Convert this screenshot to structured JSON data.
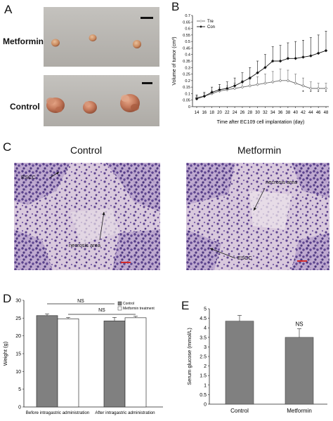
{
  "panels": {
    "A": {
      "letter": "A",
      "rows": [
        {
          "label": "Metformin",
          "tumor_sizes": [
            "small",
            "small",
            "small"
          ]
        },
        {
          "label": "Control",
          "tumor_sizes": [
            "large",
            "medium",
            "large"
          ]
        }
      ],
      "colors": {
        "photo_bg": "#b9b6b1",
        "tumor": "#c98a5f",
        "tumor_dark": "#a65e3d"
      }
    },
    "B": {
      "letter": "B"
    },
    "C": {
      "letter": "C",
      "titles": {
        "left": "Control",
        "right": "Metformin"
      },
      "left_labels": {
        "escc": "ESCC",
        "necrosis": "necrosis area"
      },
      "right_labels": {
        "escc": "ESCC",
        "necrosis": "necrosis area"
      },
      "colors": {
        "tissue_bg": "#d7c6db",
        "nuclei": "#5a3e86",
        "scalebar": "#d32a2a"
      }
    },
    "D": {
      "letter": "D",
      "ns_top": "NS",
      "ns_bottom": "NS"
    },
    "E": {
      "letter": "E",
      "ns": "NS"
    }
  },
  "chart_data": [
    {
      "id": "B",
      "type": "line",
      "xlabel": "Time after EC109 cell implantation (day)",
      "ylabel": "Volume of tumor (cm³)",
      "x": [
        14,
        16,
        18,
        20,
        22,
        24,
        26,
        28,
        30,
        32,
        34,
        36,
        38,
        40,
        42,
        44,
        46,
        48
      ],
      "xticks": [
        "14",
        "16",
        "18",
        "20",
        "22",
        "24",
        "26",
        "28",
        "30",
        "32",
        "34",
        "36",
        "38",
        "40",
        "42",
        "44",
        "46",
        "48"
      ],
      "yticks": [
        "0",
        "0.05",
        "0.1",
        "0.15",
        "0.2",
        "0.25",
        "0.3",
        "0.35",
        "0.4",
        "0.45",
        "0.5",
        "0.55",
        "0.6",
        "0.65",
        "0.7"
      ],
      "ylim": [
        0,
        0.7
      ],
      "legend_position": "top-left",
      "grid": false,
      "series": [
        {
          "name": "Tre",
          "values": [
            0.07,
            0.08,
            0.1,
            0.12,
            0.13,
            0.14,
            0.15,
            0.16,
            0.17,
            0.18,
            0.19,
            0.2,
            0.2,
            0.18,
            0.16,
            0.14,
            0.14,
            0.14
          ],
          "errors": [
            0.02,
            0.02,
            0.02,
            0.03,
            0.03,
            0.04,
            0.05,
            0.05,
            0.06,
            0.07,
            0.08,
            0.09,
            0.08,
            0.07,
            0.06,
            0.05,
            0.04,
            0.04
          ],
          "marker": "open-diamond",
          "color": "#666666"
        },
        {
          "name": "Con",
          "values": [
            0.06,
            0.08,
            0.11,
            0.13,
            0.14,
            0.16,
            0.19,
            0.22,
            0.26,
            0.3,
            0.35,
            0.35,
            0.37,
            0.37,
            0.38,
            0.39,
            0.41,
            0.43
          ],
          "errors": [
            0.03,
            0.03,
            0.04,
            0.04,
            0.05,
            0.06,
            0.07,
            0.08,
            0.09,
            0.1,
            0.11,
            0.12,
            0.12,
            0.13,
            0.13,
            0.14,
            0.14,
            0.15
          ],
          "marker": "filled-diamond",
          "color": "#111111"
        }
      ],
      "annotations": [
        {
          "x": 42,
          "text": "*"
        },
        {
          "x": 44,
          "text": "*"
        },
        {
          "x": 46,
          "text": "*"
        },
        {
          "x": 48,
          "text": "*"
        }
      ]
    },
    {
      "id": "D",
      "type": "bar",
      "ylabel": "Weight (g)",
      "categories": [
        "Before intragastric administration",
        "After intragastric administration"
      ],
      "yticks": [
        "0",
        "5",
        "10",
        "15",
        "20",
        "25",
        "30"
      ],
      "ylim": [
        0,
        30
      ],
      "legend_position": "top-right",
      "series": [
        {
          "name": "Control",
          "values": [
            25.7,
            24.2
          ],
          "errors": [
            0.5,
            1.0
          ],
          "color": "#808080"
        },
        {
          "name": "Metformin treatment",
          "values": [
            24.8,
            25.1
          ],
          "errors": [
            0.4,
            0.4
          ],
          "color": "#ffffff"
        }
      ]
    },
    {
      "id": "E",
      "type": "bar",
      "ylabel": "Serum glucose (mmol/L)",
      "categories": [
        "Control",
        "Metformin"
      ],
      "yticks": [
        "0",
        "0.5",
        "1",
        "1.5",
        "2",
        "2.5",
        "3",
        "3.5",
        "4",
        "4.5",
        "5"
      ],
      "ylim": [
        0,
        5
      ],
      "values": [
        4.35,
        3.5
      ],
      "errors": [
        0.3,
        0.45
      ],
      "color": "#808080"
    }
  ]
}
